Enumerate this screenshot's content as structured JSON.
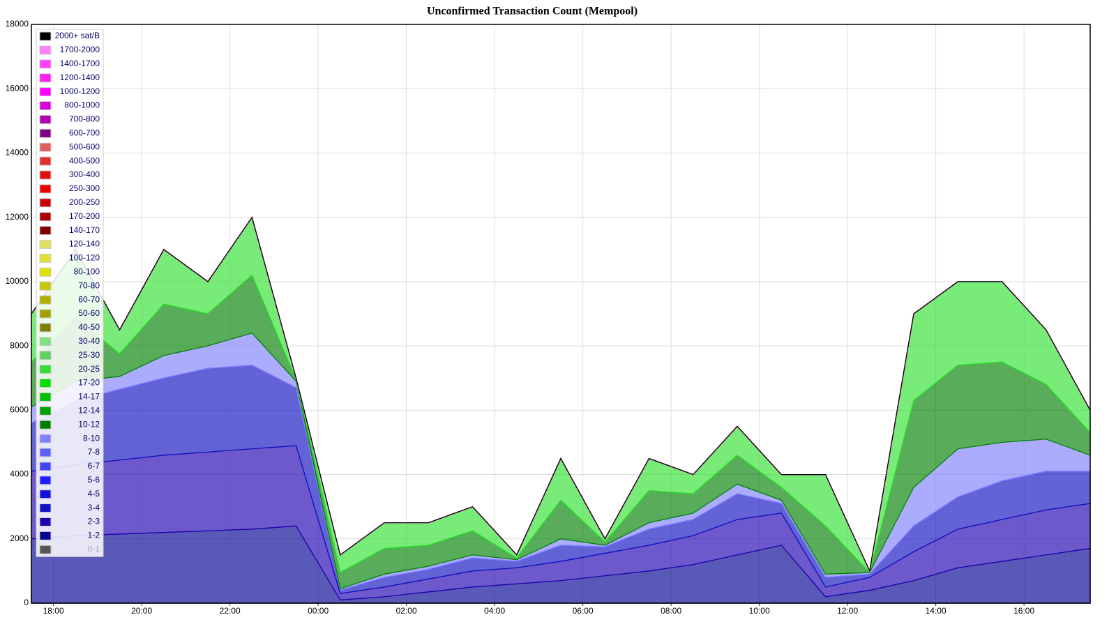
{
  "chart_data": {
    "type": "stacked-area",
    "title": "Unconfirmed Transaction Count (Mempool)",
    "x": [
      "17:30",
      "18:30",
      "19:30",
      "20:30",
      "21:30",
      "22:30",
      "23:30",
      "00:30",
      "01:30",
      "02:30",
      "03:30",
      "04:30",
      "05:30",
      "06:30",
      "07:30",
      "08:30",
      "09:30",
      "10:30",
      "11:30",
      "12:30",
      "13:30",
      "14:30",
      "15:30",
      "16:30",
      "17:30"
    ],
    "xlim": [
      "17:30",
      "17:30"
    ],
    "xticks": [
      "18:00",
      "20:00",
      "22:00",
      "00:00",
      "02:00",
      "04:00",
      "06:00",
      "08:00",
      "10:00",
      "12:00",
      "14:00",
      "16:00"
    ],
    "ylim": [
      0,
      18000
    ],
    "yticks": [
      0,
      2000,
      4000,
      6000,
      8000,
      10000,
      12000,
      14000,
      16000,
      18000
    ],
    "grid": true,
    "legend": "top-left",
    "series": [
      {
        "name": "2000+ sat/B",
        "color": "#000000",
        "values": [
          0,
          0,
          0,
          0,
          0,
          0,
          0,
          0,
          0,
          0,
          0,
          0,
          0,
          0,
          0,
          0,
          0,
          0,
          0,
          0,
          0,
          0,
          0,
          0,
          0
        ]
      },
      {
        "name": "1700-2000",
        "color": "#ff80ff",
        "values": [
          0,
          0,
          0,
          0,
          0,
          0,
          0,
          0,
          0,
          0,
          0,
          0,
          0,
          0,
          0,
          0,
          0,
          0,
          0,
          0,
          0,
          0,
          0,
          0,
          0
        ]
      },
      {
        "name": "1400-1700",
        "color": "#ff40ff",
        "values": [
          0,
          0,
          0,
          0,
          0,
          0,
          0,
          0,
          0,
          0,
          0,
          0,
          0,
          0,
          0,
          0,
          0,
          0,
          0,
          0,
          0,
          0,
          0,
          0,
          0
        ]
      },
      {
        "name": "1200-1400",
        "color": "#ff20f0",
        "values": [
          0,
          0,
          0,
          0,
          0,
          0,
          0,
          0,
          0,
          0,
          0,
          0,
          0,
          0,
          0,
          0,
          0,
          0,
          0,
          0,
          0,
          0,
          0,
          0,
          0
        ]
      },
      {
        "name": "1000-1200",
        "color": "#ff00ff",
        "values": [
          0,
          0,
          0,
          0,
          0,
          0,
          0,
          0,
          0,
          0,
          0,
          0,
          0,
          0,
          0,
          0,
          0,
          0,
          0,
          0,
          0,
          0,
          0,
          0,
          0
        ]
      },
      {
        "name": "800-1000",
        "color": "#dd00dd",
        "values": [
          0,
          0,
          0,
          0,
          0,
          0,
          0,
          0,
          0,
          0,
          0,
          0,
          0,
          0,
          0,
          0,
          0,
          0,
          0,
          0,
          0,
          0,
          0,
          0,
          0
        ]
      },
      {
        "name": "700-800",
        "color": "#b000b0",
        "values": [
          0,
          0,
          0,
          0,
          0,
          0,
          0,
          0,
          0,
          0,
          0,
          0,
          0,
          0,
          0,
          0,
          0,
          0,
          0,
          0,
          0,
          0,
          0,
          0,
          0
        ]
      },
      {
        "name": "600-700",
        "color": "#800080",
        "values": [
          0,
          0,
          0,
          0,
          0,
          0,
          0,
          0,
          0,
          0,
          0,
          0,
          0,
          0,
          0,
          0,
          0,
          0,
          0,
          0,
          0,
          0,
          0,
          0,
          0
        ]
      },
      {
        "name": "500-600",
        "color": "#e06060",
        "values": [
          0,
          0,
          0,
          0,
          0,
          0,
          0,
          0,
          0,
          0,
          0,
          0,
          0,
          0,
          0,
          0,
          0,
          0,
          0,
          0,
          0,
          0,
          0,
          0,
          0
        ]
      },
      {
        "name": "400-500",
        "color": "#e03030",
        "values": [
          0,
          0,
          0,
          0,
          0,
          0,
          0,
          0,
          0,
          0,
          0,
          0,
          0,
          0,
          0,
          0,
          0,
          0,
          0,
          0,
          0,
          0,
          0,
          0,
          0
        ]
      },
      {
        "name": "300-400",
        "color": "#e01010",
        "values": [
          0,
          0,
          0,
          0,
          0,
          0,
          0,
          0,
          0,
          0,
          0,
          0,
          0,
          0,
          0,
          0,
          0,
          0,
          0,
          0,
          0,
          0,
          0,
          0,
          0
        ]
      },
      {
        "name": "250-300",
        "color": "#ee0000",
        "values": [
          0,
          0,
          0,
          0,
          0,
          0,
          0,
          0,
          0,
          0,
          0,
          0,
          0,
          0,
          0,
          0,
          0,
          0,
          0,
          0,
          0,
          0,
          0,
          0,
          0
        ]
      },
      {
        "name": "200-250",
        "color": "#cc0000",
        "values": [
          0,
          0,
          0,
          0,
          0,
          0,
          0,
          0,
          0,
          0,
          0,
          0,
          0,
          0,
          0,
          0,
          0,
          0,
          0,
          0,
          0,
          0,
          0,
          0,
          0
        ]
      },
      {
        "name": "170-200",
        "color": "#aa0000",
        "values": [
          0,
          0,
          0,
          0,
          0,
          0,
          0,
          0,
          0,
          0,
          0,
          0,
          0,
          0,
          0,
          0,
          0,
          0,
          0,
          0,
          0,
          0,
          0,
          0,
          0
        ]
      },
      {
        "name": "140-170",
        "color": "#800000",
        "values": [
          0,
          0,
          0,
          0,
          0,
          0,
          0,
          0,
          0,
          0,
          0,
          0,
          0,
          0,
          0,
          0,
          0,
          0,
          0,
          0,
          0,
          0,
          0,
          0,
          0
        ]
      },
      {
        "name": "120-140",
        "color": "#e0e060",
        "values": [
          0,
          0,
          0,
          0,
          0,
          0,
          0,
          0,
          0,
          0,
          0,
          0,
          0,
          0,
          0,
          0,
          0,
          0,
          0,
          0,
          0,
          0,
          0,
          0,
          0
        ]
      },
      {
        "name": "100-120",
        "color": "#e0e030",
        "values": [
          0,
          0,
          0,
          0,
          0,
          0,
          0,
          0,
          0,
          0,
          0,
          0,
          0,
          0,
          0,
          0,
          0,
          0,
          0,
          0,
          0,
          0,
          0,
          0,
          0
        ]
      },
      {
        "name": "80-100",
        "color": "#e0e000",
        "values": [
          0,
          0,
          0,
          0,
          0,
          0,
          0,
          0,
          0,
          0,
          0,
          0,
          0,
          0,
          0,
          0,
          0,
          0,
          0,
          0,
          0,
          0,
          0,
          0,
          0
        ]
      },
      {
        "name": "70-80",
        "color": "#c8c800",
        "values": [
          0,
          0,
          0,
          0,
          0,
          0,
          0,
          0,
          0,
          0,
          0,
          0,
          0,
          0,
          0,
          0,
          0,
          0,
          0,
          0,
          0,
          0,
          0,
          0,
          0
        ]
      },
      {
        "name": "60-70",
        "color": "#b0b000",
        "values": [
          0,
          0,
          0,
          0,
          0,
          0,
          0,
          0,
          0,
          0,
          0,
          0,
          0,
          0,
          0,
          0,
          0,
          0,
          0,
          0,
          0,
          0,
          0,
          0,
          0
        ]
      },
      {
        "name": "50-60",
        "color": "#a0a000",
        "values": [
          0,
          0,
          0,
          0,
          0,
          0,
          0,
          0,
          0,
          0,
          0,
          0,
          0,
          0,
          0,
          0,
          0,
          0,
          0,
          0,
          0,
          0,
          0,
          0,
          0
        ]
      },
      {
        "name": "40-50",
        "color": "#808000",
        "values": [
          0,
          0,
          0,
          0,
          0,
          0,
          0,
          0,
          0,
          0,
          0,
          0,
          0,
          0,
          0,
          0,
          0,
          0,
          0,
          0,
          0,
          0,
          0,
          0,
          0
        ]
      },
      {
        "name": "30-40",
        "color": "#80e080",
        "values": [
          0,
          0,
          0,
          0,
          0,
          0,
          0,
          0,
          0,
          0,
          0,
          0,
          0,
          0,
          0,
          0,
          0,
          0,
          0,
          0,
          0,
          0,
          0,
          0,
          0
        ]
      },
      {
        "name": "25-30",
        "color": "#60d060",
        "values": [
          0,
          0,
          0,
          0,
          0,
          0,
          0,
          0,
          0,
          0,
          0,
          0,
          0,
          0,
          0,
          0,
          0,
          0,
          0,
          0,
          0,
          0,
          0,
          0,
          0
        ]
      },
      {
        "name": "20-25",
        "color": "#30e030",
        "values": [
          1500,
          2100,
          750,
          1700,
          1000,
          1800,
          50,
          550,
          800,
          700,
          750,
          100,
          1300,
          100,
          1000,
          600,
          900,
          400,
          1600,
          50,
          2700,
          2600,
          2500,
          1700,
          700
        ]
      },
      {
        "name": "17-20",
        "color": "#00e000",
        "values": [
          0,
          0,
          0,
          0,
          0,
          0,
          0,
          0,
          0,
          0,
          0,
          0,
          0,
          0,
          0,
          0,
          0,
          0,
          0,
          0,
          0,
          0,
          0,
          0,
          0
        ]
      },
      {
        "name": "14-17",
        "color": "#00c000",
        "values": [
          0,
          0,
          0,
          0,
          0,
          0,
          0,
          0,
          0,
          0,
          0,
          0,
          0,
          0,
          0,
          0,
          0,
          0,
          0,
          0,
          0,
          0,
          0,
          0,
          0
        ]
      },
      {
        "name": "12-14",
        "color": "#00a000",
        "values": [
          0,
          0,
          0,
          0,
          0,
          0,
          0,
          0,
          0,
          0,
          0,
          0,
          0,
          0,
          0,
          0,
          0,
          0,
          0,
          0,
          0,
          0,
          0,
          0,
          0
        ]
      },
      {
        "name": "10-12",
        "color": "#008000",
        "values": [
          1400,
          2000,
          700,
          1600,
          1000,
          1800,
          50,
          500,
          800,
          650,
          750,
          50,
          1200,
          100,
          1000,
          600,
          900,
          400,
          1500,
          0,
          2700,
          2600,
          2500,
          1700,
          700
        ]
      },
      {
        "name": "8-10",
        "color": "#8080ff",
        "values": [
          500,
          600,
          400,
          700,
          700,
          1000,
          200,
          50,
          100,
          100,
          100,
          50,
          200,
          50,
          200,
          200,
          300,
          100,
          100,
          50,
          1200,
          1500,
          1200,
          1000,
          500
        ]
      },
      {
        "name": "7-8",
        "color": "#6060ff",
        "values": [
          0,
          0,
          0,
          0,
          0,
          0,
          0,
          0,
          0,
          0,
          0,
          0,
          0,
          0,
          0,
          0,
          0,
          0,
          0,
          0,
          0,
          0,
          0,
          0,
          0
        ]
      },
      {
        "name": "6-7",
        "color": "#4040ff",
        "values": [
          0,
          0,
          0,
          0,
          0,
          0,
          0,
          0,
          0,
          0,
          0,
          0,
          0,
          0,
          0,
          0,
          0,
          0,
          0,
          0,
          0,
          0,
          0,
          0,
          0
        ]
      },
      {
        "name": "5-6",
        "color": "#2020ff",
        "values": [
          0,
          0,
          0,
          0,
          0,
          0,
          0,
          0,
          0,
          0,
          0,
          0,
          0,
          0,
          0,
          0,
          0,
          0,
          0,
          0,
          0,
          0,
          0,
          0,
          0
        ]
      },
      {
        "name": "4-5",
        "color": "#1010e0",
        "values": [
          0,
          0,
          0,
          0,
          0,
          0,
          0,
          0,
          0,
          0,
          0,
          0,
          0,
          0,
          0,
          0,
          0,
          0,
          0,
          0,
          0,
          0,
          0,
          0,
          0
        ]
      },
      {
        "name": "3-4",
        "color": "#1010c0",
        "values": [
          1500,
          2000,
          2200,
          2400,
          2600,
          2600,
          1800,
          100,
          300,
          300,
          400,
          200,
          500,
          200,
          500,
          500,
          800,
          300,
          300,
          100,
          800,
          1000,
          1200,
          1200,
          1000
        ]
      },
      {
        "name": "2-3",
        "color": "#2000b0",
        "values": [
          2100,
          2200,
          2300,
          2400,
          2450,
          2500,
          2500,
          200,
          300,
          400,
          500,
          500,
          600,
          700,
          800,
          900,
          1100,
          1000,
          300,
          400,
          900,
          1200,
          1300,
          1400,
          1400
        ]
      },
      {
        "name": "1-2",
        "color": "#000090",
        "values": [
          2000,
          2100,
          2150,
          2200,
          2250,
          2300,
          2400,
          100,
          200,
          350,
          500,
          600,
          700,
          850,
          1000,
          1200,
          1500,
          1800,
          200,
          400,
          700,
          1100,
          1300,
          1500,
          1700
        ]
      },
      {
        "name": "0-1",
        "color": "#555555",
        "values": [
          0,
          0,
          0,
          0,
          0,
          0,
          0,
          0,
          0,
          0,
          0,
          0,
          0,
          0,
          0,
          0,
          0,
          0,
          0,
          0,
          0,
          0,
          0,
          0,
          0
        ]
      }
    ]
  }
}
